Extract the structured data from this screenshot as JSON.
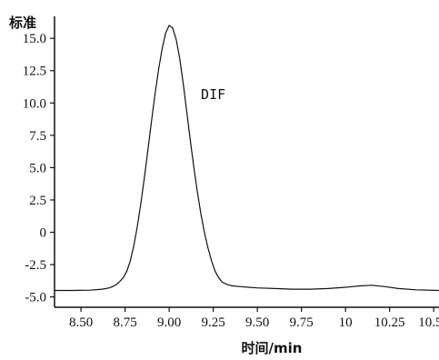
{
  "chart_data": {
    "type": "line",
    "ylabel": "标准",
    "xlabel": "时间/min",
    "x_ticks": [
      "8.50",
      "8.75",
      "9.00",
      "9.25",
      "9.50",
      "9.75",
      "10",
      "10.25",
      "10.50"
    ],
    "y_ticks": [
      "15.0",
      "12.5",
      "10.0",
      "7.5",
      "5.0",
      "2.5",
      "0",
      "-2.5",
      "-5.0"
    ],
    "xlim": [
      8.35,
      10.53
    ],
    "ylim": [
      -5.8,
      16.7
    ],
    "grid": false,
    "annotations": [
      {
        "text": "DIF",
        "x": 9.18,
        "y": 10.3
      }
    ],
    "series": [
      {
        "color": "#111111",
        "x": [
          8.35,
          8.45,
          8.55,
          8.62,
          8.66,
          8.68,
          8.7,
          8.72,
          8.74,
          8.76,
          8.78,
          8.8,
          8.82,
          8.84,
          8.86,
          8.88,
          8.9,
          8.92,
          8.94,
          8.96,
          8.98,
          9.0,
          9.02,
          9.04,
          9.06,
          9.08,
          9.1,
          9.12,
          9.14,
          9.16,
          9.18,
          9.2,
          9.22,
          9.24,
          9.26,
          9.28,
          9.3,
          9.33,
          9.36,
          9.4,
          9.45,
          9.5,
          9.6,
          9.7,
          9.8,
          9.9,
          10.0,
          10.08,
          10.15,
          10.22,
          10.3,
          10.4,
          10.53
        ],
        "y": [
          -4.5,
          -4.5,
          -4.48,
          -4.4,
          -4.3,
          -4.2,
          -4.05,
          -3.8,
          -3.5,
          -3.0,
          -2.2,
          -1.0,
          0.5,
          2.3,
          4.3,
          6.4,
          8.6,
          10.7,
          12.6,
          14.2,
          15.4,
          16.0,
          15.8,
          14.9,
          13.4,
          11.5,
          9.3,
          7.1,
          5.0,
          3.1,
          1.4,
          0.0,
          -1.2,
          -2.2,
          -3.0,
          -3.5,
          -3.85,
          -4.05,
          -4.15,
          -4.2,
          -4.25,
          -4.3,
          -4.35,
          -4.4,
          -4.4,
          -4.35,
          -4.25,
          -4.15,
          -4.1,
          -4.2,
          -4.35,
          -4.45,
          -4.5
        ]
      }
    ]
  }
}
